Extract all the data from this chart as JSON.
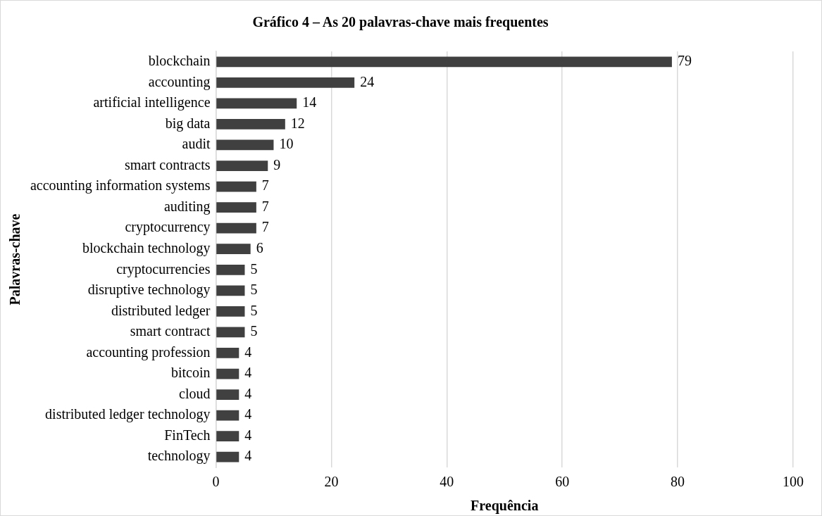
{
  "chart_data": {
    "type": "bar",
    "orientation": "horizontal",
    "title": "Gráfico 4 – As 20 palavras-chave mais frequentes",
    "xlabel": "Frequência",
    "ylabel": "Palavras-chave",
    "categories": [
      "blockchain",
      "accounting",
      "artificial intelligence",
      "big data",
      "audit",
      "smart contracts",
      "accounting information systems",
      "auditing",
      "cryptocurrency",
      "blockchain technology",
      "cryptocurrencies",
      "disruptive technology",
      "distributed ledger",
      "smart contract",
      "accounting profession",
      "bitcoin",
      "cloud",
      "distributed ledger technology",
      "FinTech",
      "technology"
    ],
    "values": [
      79,
      24,
      14,
      12,
      10,
      9,
      7,
      7,
      7,
      6,
      5,
      5,
      5,
      5,
      4,
      4,
      4,
      4,
      4,
      4
    ],
    "color": "#404040",
    "xlim": [
      0,
      100
    ],
    "xticks": [
      0,
      20,
      40,
      60,
      80,
      100
    ],
    "grid": "x",
    "data_labels": true,
    "legend": false
  }
}
